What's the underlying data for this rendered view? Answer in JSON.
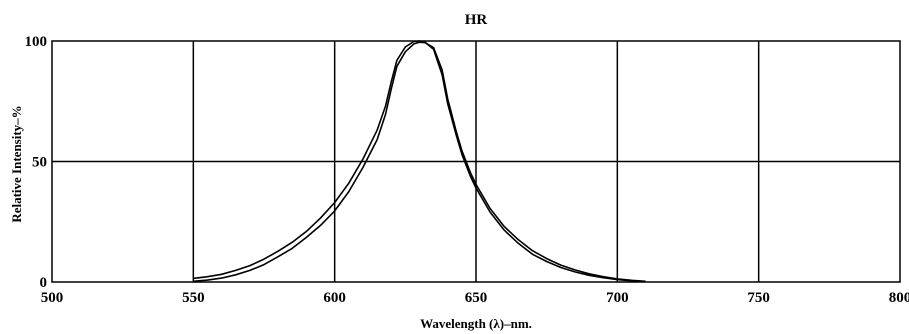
{
  "chart_data": {
    "type": "line",
    "title": "HR",
    "xlabel": "Wavelength (λ)–nm.",
    "ylabel": "Relative Intensity–%",
    "xlim": [
      500,
      800
    ],
    "ylim": [
      0,
      100
    ],
    "x_ticks": [
      "500",
      "550",
      "600",
      "650",
      "700",
      "750",
      "800"
    ],
    "y_ticks": [
      "0",
      "50",
      "100"
    ],
    "grid": true,
    "series": [
      {
        "x": [
          550,
          555,
          560,
          565,
          570,
          575,
          580,
          585,
          590,
          595,
          600,
          605,
          610,
          615,
          618,
          620,
          622,
          625,
          628,
          630,
          632,
          635,
          638,
          640,
          643,
          645,
          648,
          650,
          655,
          660,
          665,
          670,
          675,
          680,
          685,
          690,
          695,
          700,
          705,
          710
        ],
        "values": [
          1.5,
          2.2,
          3.2,
          4.8,
          6.8,
          9.5,
          12.8,
          16.5,
          21,
          26.5,
          33,
          41,
          51,
          63,
          73,
          83,
          92,
          97.5,
          99.8,
          100,
          99.5,
          96.5,
          86,
          74,
          61,
          53,
          44,
          39,
          29,
          21.5,
          16,
          11.5,
          8.5,
          6,
          4.2,
          2.8,
          1.8,
          1,
          0.5,
          0.2
        ]
      },
      {
        "x": [
          550,
          555,
          560,
          565,
          570,
          575,
          580,
          585,
          590,
          595,
          600,
          605,
          610,
          615,
          618,
          620,
          622,
          625,
          628,
          630,
          632,
          635,
          638,
          640,
          643,
          645,
          648,
          650,
          655,
          660,
          665,
          670,
          675,
          680,
          685,
          690,
          695,
          700,
          705,
          710
        ],
        "values": [
          0.3,
          0.8,
          1.6,
          3,
          4.8,
          7.2,
          10.5,
          14,
          18.5,
          23.5,
          29.5,
          37.5,
          47.5,
          59,
          69.5,
          80,
          89.5,
          95.5,
          98.8,
          99.5,
          99.3,
          97.2,
          88,
          76,
          62.5,
          54.5,
          45.5,
          40.5,
          30.5,
          23,
          17.5,
          13,
          9.7,
          7,
          5,
          3.4,
          2.2,
          1.3,
          0.7,
          0.3
        ]
      }
    ]
  }
}
